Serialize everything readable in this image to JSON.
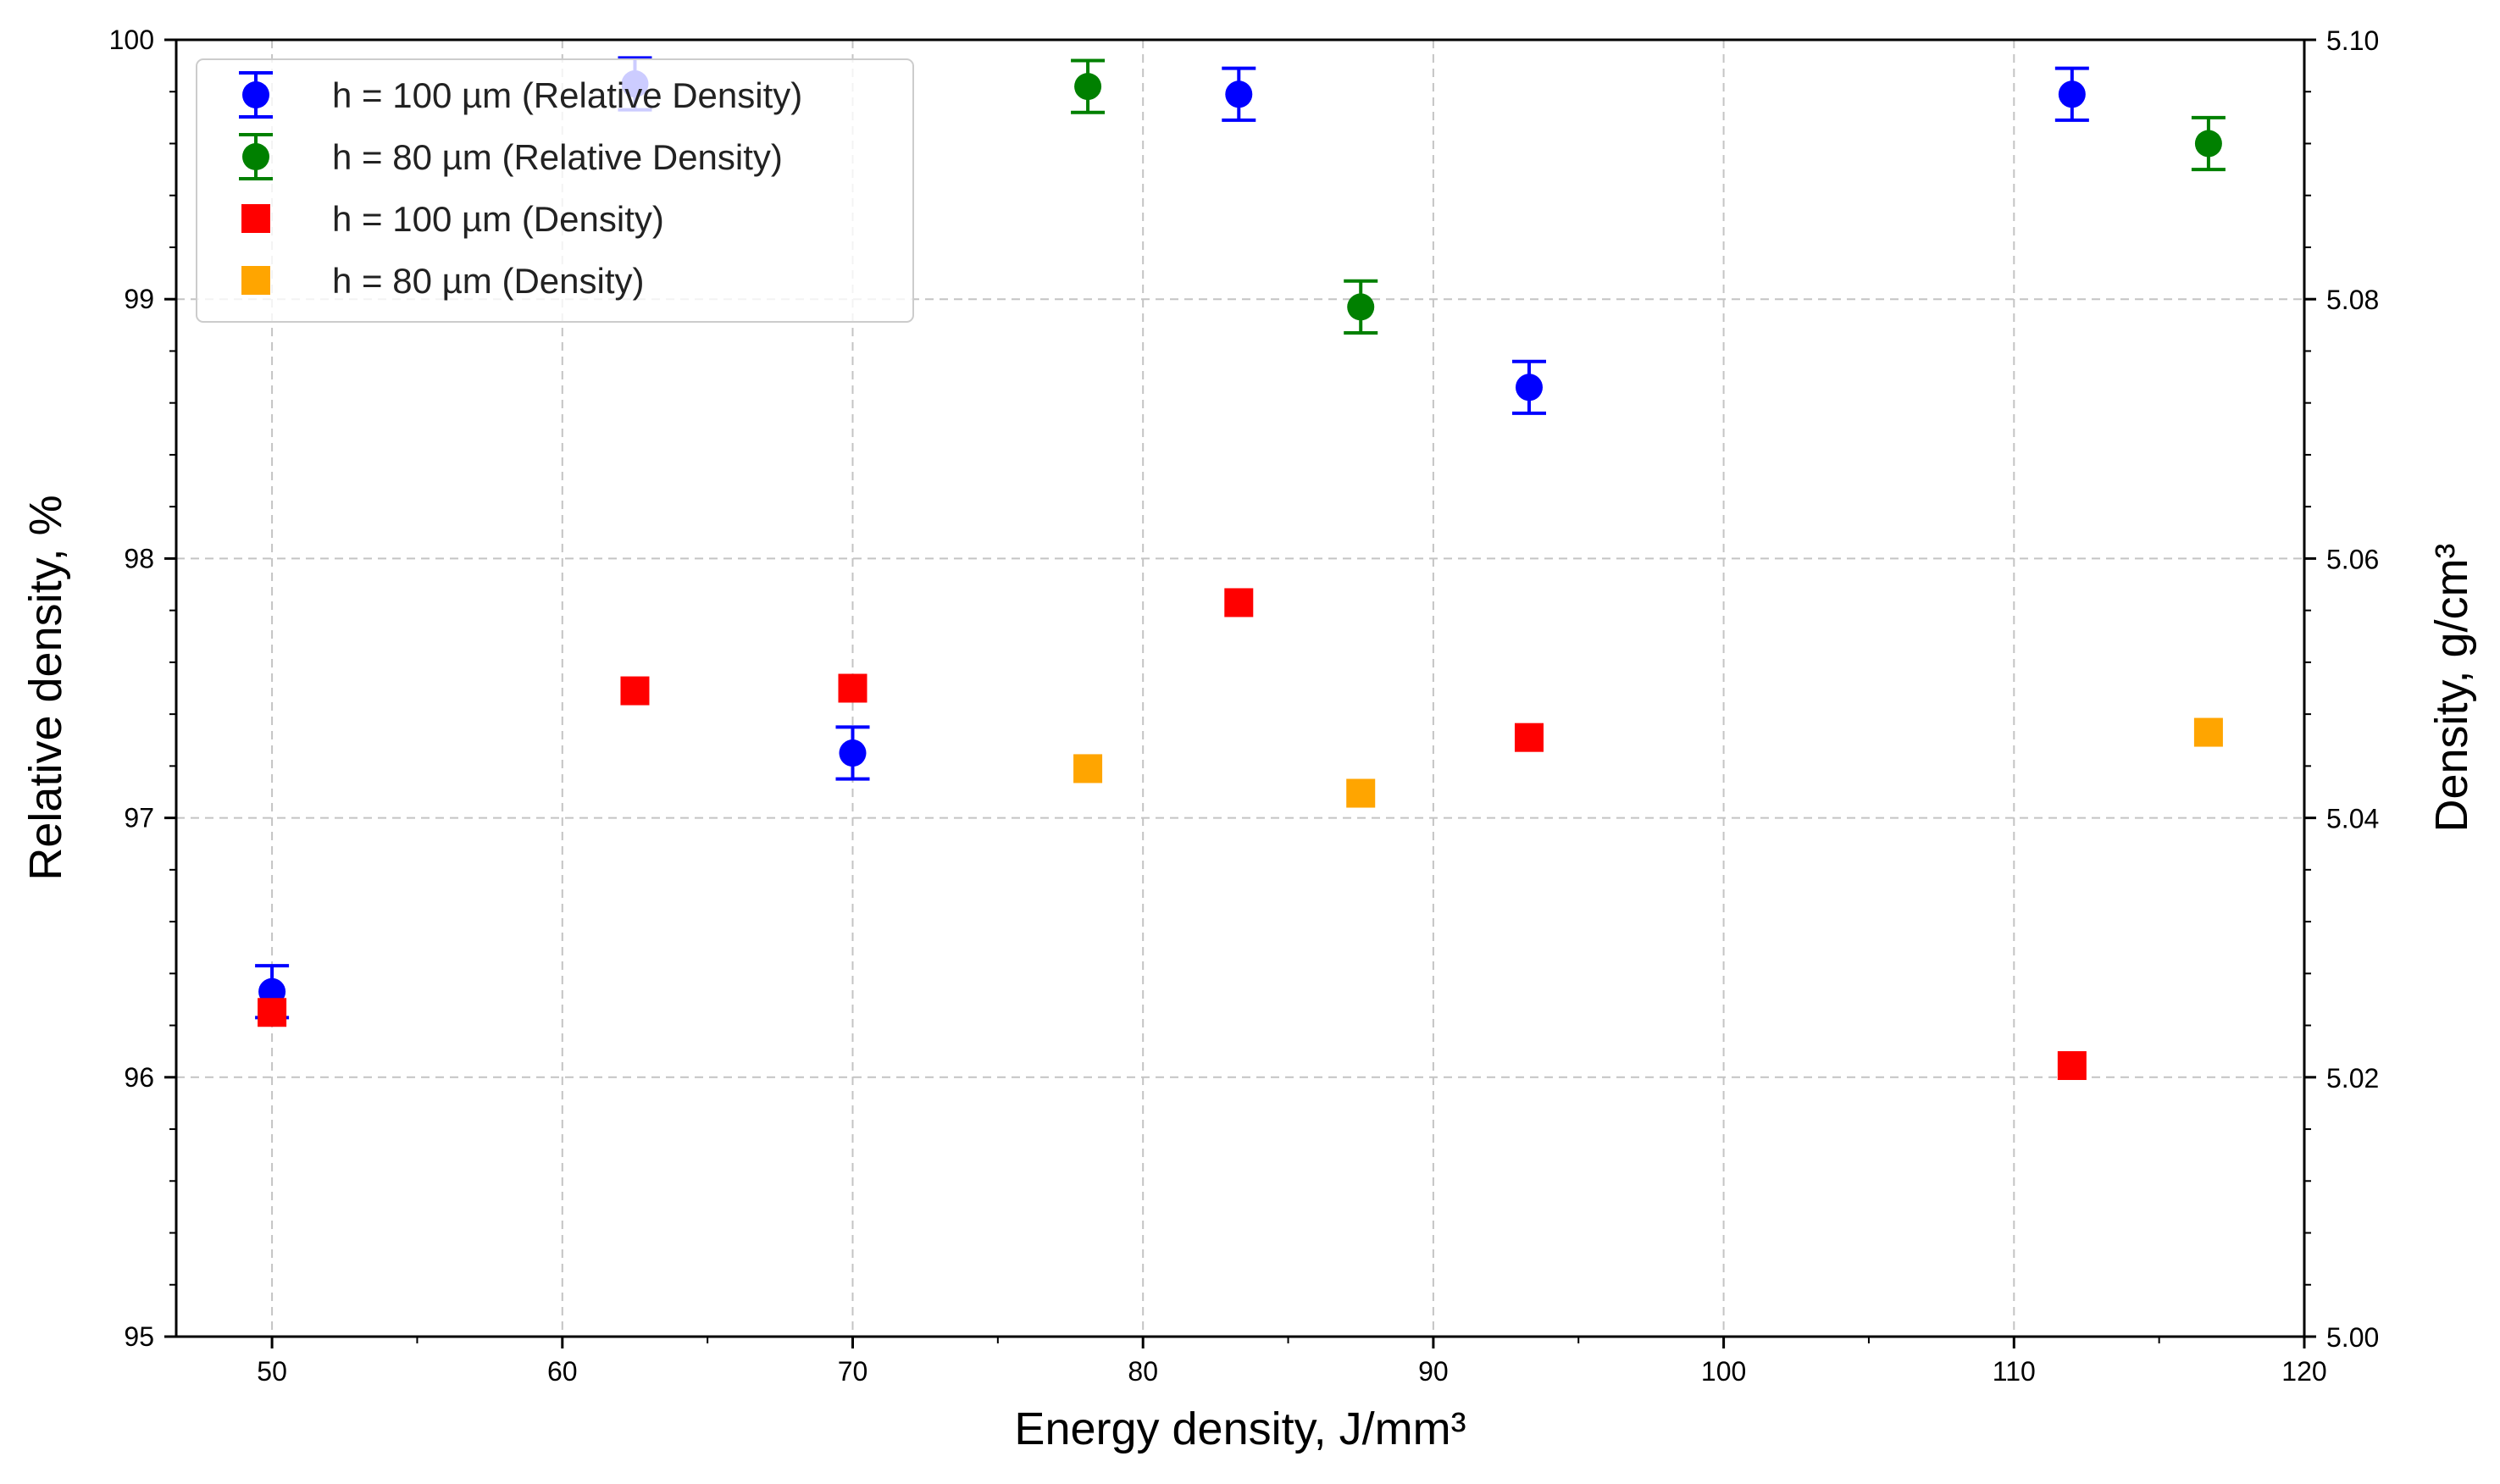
{
  "chart_data": {
    "type": "scatter",
    "xlabel": "Energy density, J/mm³",
    "ylabel_left": "Relative density, %",
    "ylabel_right": "Density, g/cm³",
    "xlim": [
      46.7,
      120
    ],
    "ylim_left": [
      95,
      100
    ],
    "ylim_right": [
      5.0,
      5.1
    ],
    "x_ticks": [
      50,
      60,
      70,
      80,
      90,
      100,
      110,
      120
    ],
    "y_left_ticks": [
      95,
      96,
      97,
      98,
      99,
      100
    ],
    "y_right_ticks": [
      "5.00",
      "5.02",
      "5.04",
      "5.06",
      "5.08",
      "5.10"
    ],
    "grid": true,
    "legend_position": "top-left",
    "series": [
      {
        "name": "h = 100 µm (Relative Density)",
        "axis": "left",
        "marker": "circle",
        "color": "#0000ff",
        "errorbar": true,
        "points": [
          {
            "x": 50,
            "y": 96.33,
            "err": 0.1
          },
          {
            "x": 62.5,
            "y": 99.83,
            "err": 0.1
          },
          {
            "x": 70,
            "y": 97.25,
            "err": 0.1
          },
          {
            "x": 83.3,
            "y": 99.79,
            "err": 0.1
          },
          {
            "x": 93.3,
            "y": 98.66,
            "err": 0.1
          },
          {
            "x": 112,
            "y": 99.79,
            "err": 0.1
          }
        ]
      },
      {
        "name": "h = 80 µm (Relative Density)",
        "axis": "left",
        "marker": "circle",
        "color": "#008000",
        "errorbar": true,
        "points": [
          {
            "x": 78.1,
            "y": 99.82,
            "err": 0.1
          },
          {
            "x": 87.5,
            "y": 98.97,
            "err": 0.1
          },
          {
            "x": 116.7,
            "y": 99.6,
            "err": 0.1
          }
        ]
      },
      {
        "name": "h = 100 µm (Density)",
        "axis": "right",
        "marker": "square",
        "color": "#ff0000",
        "errorbar": false,
        "points": [
          {
            "x": 50,
            "y": 5.025
          },
          {
            "x": 62.5,
            "y": 5.0498
          },
          {
            "x": 70,
            "y": 5.05
          },
          {
            "x": 83.3,
            "y": 5.0566
          },
          {
            "x": 93.3,
            "y": 5.0462
          },
          {
            "x": 112,
            "y": 5.0209
          }
        ]
      },
      {
        "name": "h = 80 µm (Density)",
        "axis": "right",
        "marker": "square",
        "color": "#ffa500",
        "errorbar": false,
        "points": [
          {
            "x": 78.1,
            "y": 5.0438
          },
          {
            "x": 87.5,
            "y": 5.0419
          },
          {
            "x": 116.7,
            "y": 5.0466
          }
        ]
      }
    ]
  }
}
